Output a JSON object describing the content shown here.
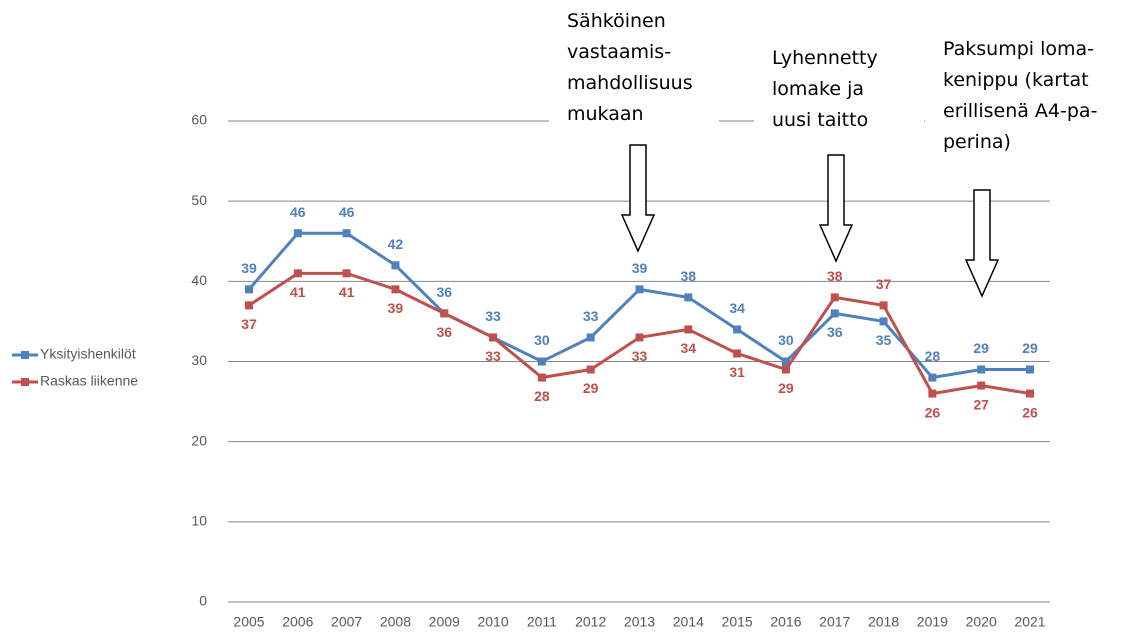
{
  "chart_data": {
    "type": "line",
    "categories": [
      "2005",
      "2006",
      "2007",
      "2008",
      "2009",
      "2010",
      "2011",
      "2012",
      "2013",
      "2014",
      "2015",
      "2016",
      "2017",
      "2018",
      "2019",
      "2020",
      "2021"
    ],
    "series": [
      {
        "name": "Yksityishenkilöt",
        "color": "#4f81bd",
        "values": [
          39,
          46,
          46,
          42,
          36,
          33,
          30,
          33,
          39,
          38,
          34,
          30,
          36,
          35,
          28,
          29,
          29
        ]
      },
      {
        "name": "Raskas liikenne",
        "color": "#c0504d",
        "values": [
          37,
          41,
          41,
          39,
          36,
          33,
          28,
          29,
          33,
          34,
          31,
          29,
          38,
          37,
          26,
          27,
          26
        ]
      }
    ],
    "ylim": [
      0,
      60
    ],
    "yticks": [
      0,
      10,
      20,
      30,
      40,
      50,
      60
    ],
    "grid": true,
    "legend": "left",
    "annotations": [
      {
        "category": "2013",
        "lines": [
          "Sähköinen",
          "vastaamis-",
          "mahdollisuus",
          "mukaan"
        ]
      },
      {
        "category": "2017",
        "lines": [
          "Lyhennetty",
          "lomake ja",
          "uusi taitto"
        ]
      },
      {
        "category": "2020",
        "lines": [
          "Paksumpi loma-",
          "kenippu (kartat",
          "erillisenä A4-pa-",
          "perina)"
        ]
      }
    ]
  }
}
